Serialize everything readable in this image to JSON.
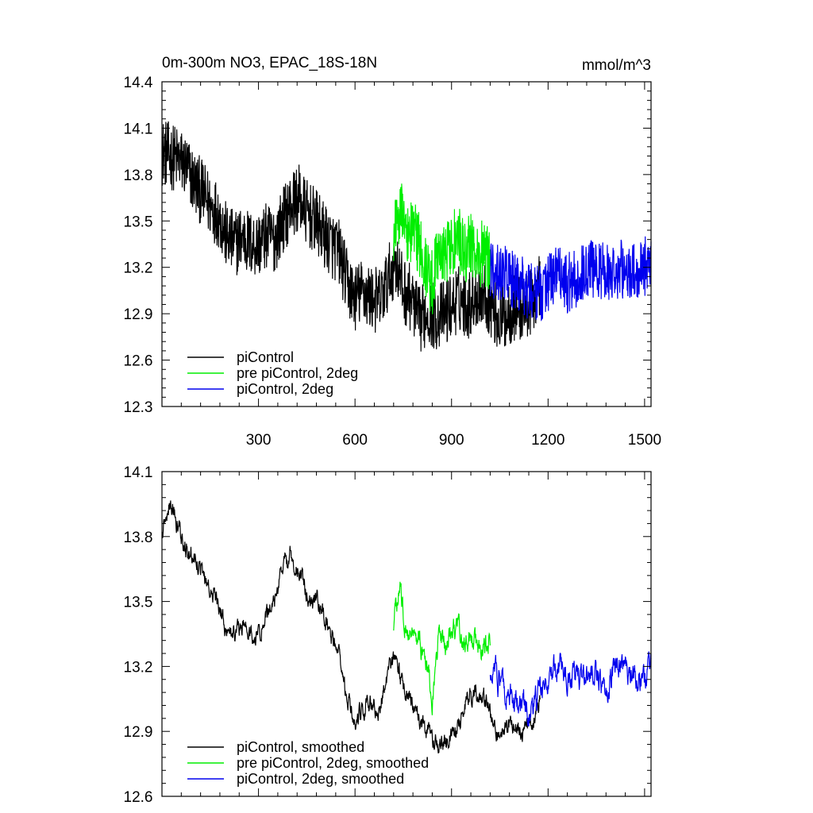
{
  "chart_data": [
    {
      "type": "line",
      "title": "0m-300m NO3, EPAC_18S-18N",
      "units": "mmol/m^3",
      "xlim": [
        0,
        1520
      ],
      "ylim": [
        12.3,
        14.4
      ],
      "xticks": [
        300,
        600,
        900,
        1200,
        1500
      ],
      "yticks": [
        12.3,
        12.6,
        12.9,
        13.2,
        13.5,
        13.8,
        14.1,
        14.4
      ],
      "x_tick_labels_shown": true,
      "legend": "bottom-left",
      "series": [
        {
          "name": "piControl",
          "color": "#000000",
          "x": [
            0,
            25,
            50,
            75,
            100,
            125,
            150,
            175,
            200,
            225,
            250,
            275,
            300,
            325,
            350,
            375,
            400,
            425,
            450,
            475,
            500,
            525,
            550,
            575,
            600,
            625,
            650,
            675,
            700,
            725,
            750,
            775,
            800,
            825,
            850,
            875,
            900,
            925,
            950,
            975,
            1000,
            1025,
            1050,
            1075,
            1100,
            1125,
            1150,
            1175
          ],
          "values": [
            13.95,
            13.92,
            13.9,
            13.85,
            13.75,
            13.68,
            13.6,
            13.55,
            13.4,
            13.35,
            13.4,
            13.35,
            13.35,
            13.4,
            13.38,
            13.5,
            13.6,
            13.65,
            13.55,
            13.5,
            13.42,
            13.35,
            13.3,
            13.1,
            13.0,
            13.05,
            13.0,
            12.98,
            13.1,
            13.25,
            13.05,
            13.0,
            12.85,
            12.92,
            12.88,
            12.9,
            12.95,
            13.0,
            12.95,
            13.02,
            13.05,
            12.95,
            12.85,
            12.9,
            12.95,
            12.92,
            12.98,
            13.1
          ],
          "noise": 0.22
        },
        {
          "name": "pre piControl, 2deg",
          "color": "#00ee00",
          "x": [
            720,
            740,
            760,
            780,
            800,
            820,
            840,
            860,
            880,
            900,
            920,
            940,
            960,
            980,
            1000,
            1020
          ],
          "values": [
            13.45,
            13.6,
            13.4,
            13.45,
            13.35,
            13.2,
            13.1,
            13.35,
            13.3,
            13.35,
            13.4,
            13.3,
            13.35,
            13.25,
            13.3,
            13.25
          ],
          "noise": 0.22
        },
        {
          "name": "piControl, 2deg",
          "color": "#0000ee",
          "x": [
            1020,
            1060,
            1100,
            1140,
            1180,
            1220,
            1260,
            1300,
            1340,
            1380,
            1420,
            1460,
            1500,
            1520
          ],
          "values": [
            13.2,
            13.15,
            13.1,
            13.05,
            13.05,
            13.15,
            13.1,
            13.15,
            13.2,
            13.15,
            13.2,
            13.15,
            13.2,
            13.25
          ],
          "noise": 0.2
        }
      ]
    },
    {
      "type": "line",
      "title": "",
      "xlim": [
        0,
        1520
      ],
      "ylim": [
        12.6,
        14.1
      ],
      "xticks": [
        300,
        600,
        900,
        1200,
        1500
      ],
      "yticks": [
        12.6,
        12.9,
        13.2,
        13.5,
        13.8,
        14.1
      ],
      "x_tick_labels_shown": false,
      "legend": "bottom-left",
      "series": [
        {
          "name": "piControl, smoothed",
          "color": "#000000",
          "x": [
            0,
            25,
            50,
            75,
            100,
            125,
            150,
            175,
            200,
            225,
            250,
            275,
            300,
            325,
            350,
            375,
            400,
            425,
            450,
            475,
            500,
            525,
            550,
            575,
            600,
            625,
            650,
            675,
            700,
            725,
            750,
            775,
            800,
            825,
            850,
            875,
            900,
            925,
            950,
            975,
            1000,
            1025,
            1050,
            1075,
            1100,
            1125,
            1150,
            1175
          ],
          "values": [
            13.85,
            13.95,
            13.85,
            13.75,
            13.7,
            13.65,
            13.55,
            13.5,
            13.35,
            13.35,
            13.4,
            13.35,
            13.35,
            13.45,
            13.5,
            13.65,
            13.7,
            13.65,
            13.55,
            13.5,
            13.45,
            13.35,
            13.25,
            13.05,
            12.95,
            13.0,
            13.05,
            13.0,
            13.15,
            13.25,
            13.1,
            13.05,
            12.95,
            12.9,
            12.85,
            12.85,
            12.9,
            12.95,
            13.05,
            13.1,
            13.05,
            12.95,
            12.88,
            12.92,
            12.95,
            12.9,
            12.95,
            13.05
          ],
          "noise": 0.05
        },
        {
          "name": "pre piControl, 2deg, smoothed",
          "color": "#00ee00",
          "x": [
            720,
            740,
            760,
            780,
            800,
            820,
            840,
            860,
            880,
            900,
            920,
            940,
            960,
            980,
            1000,
            1020
          ],
          "values": [
            13.4,
            13.55,
            13.35,
            13.4,
            13.3,
            13.2,
            13.05,
            13.35,
            13.3,
            13.35,
            13.4,
            13.3,
            13.35,
            13.3,
            13.3,
            13.3
          ],
          "noise": 0.06
        },
        {
          "name": "piControl, 2deg, smoothed",
          "color": "#0000ee",
          "x": [
            1020,
            1060,
            1100,
            1140,
            1180,
            1220,
            1260,
            1300,
            1340,
            1380,
            1420,
            1460,
            1500,
            1520
          ],
          "values": [
            13.2,
            13.1,
            13.05,
            13.0,
            13.1,
            13.2,
            13.15,
            13.15,
            13.2,
            13.1,
            13.2,
            13.15,
            13.15,
            13.25
          ],
          "noise": 0.07
        }
      ]
    }
  ]
}
